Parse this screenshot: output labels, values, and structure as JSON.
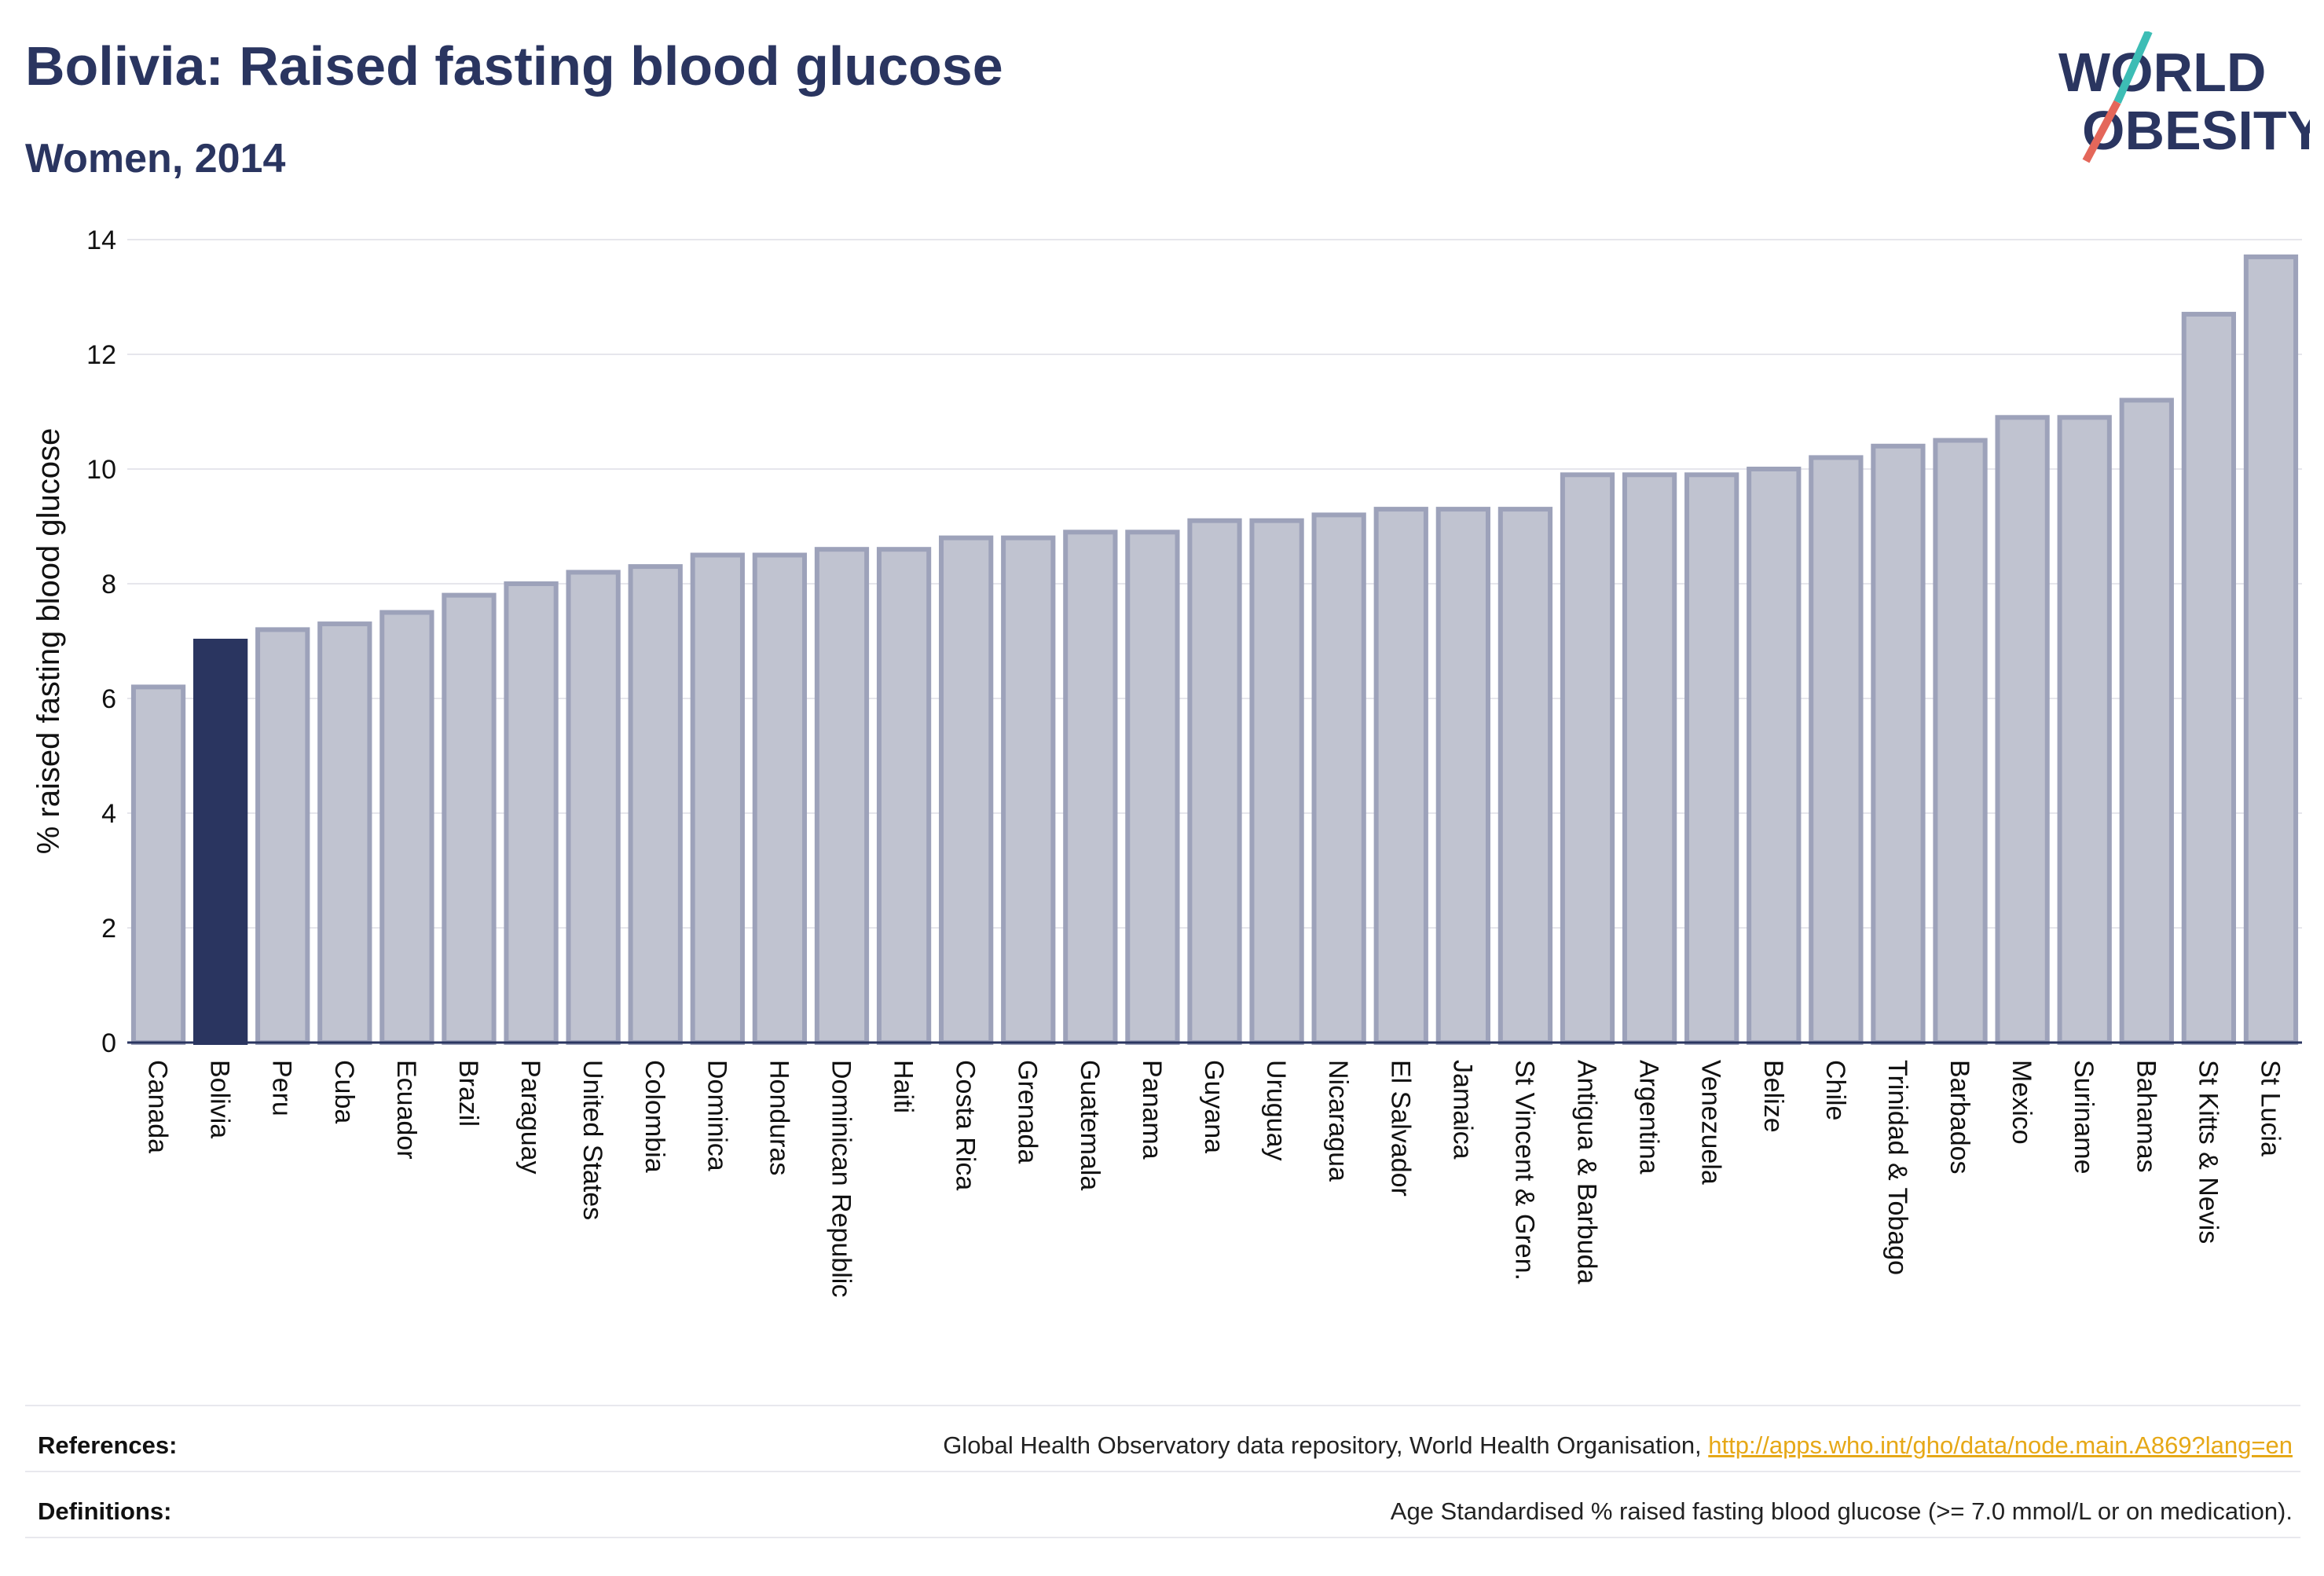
{
  "header": {
    "title": "Bolivia: Raised fasting blood glucose",
    "subtitle": "Women, 2014"
  },
  "logo": {
    "line1": "WORLD",
    "line2": "OBESITY",
    "colors": {
      "text": "#2a3560",
      "slash_top": "#3dbdb5",
      "slash_bottom": "#e4675a"
    }
  },
  "chart_data": {
    "type": "bar",
    "title": "Bolivia: Raised fasting blood glucose",
    "subtitle": "Women, 2014",
    "xlabel": "",
    "ylabel": "% raised fasting blood glucose",
    "ylim": [
      0,
      14
    ],
    "yticks": [
      0,
      2,
      4,
      6,
      8,
      10,
      12,
      14
    ],
    "grid": true,
    "highlight": "Bolivia",
    "colors": {
      "bar": "#c0c3d0",
      "bar_border": "#9da2ba",
      "highlight": "#2a3560",
      "grid": "#e6e6ec",
      "axis": "#2a3560"
    },
    "categories": [
      "Canada",
      "Bolivia",
      "Peru",
      "Cuba",
      "Ecuador",
      "Brazil",
      "Paraguay",
      "United States",
      "Colombia",
      "Dominica",
      "Honduras",
      "Dominican Republic",
      "Haiti",
      "Costa Rica",
      "Grenada",
      "Guatemala",
      "Panama",
      "Guyana",
      "Uruguay",
      "Nicaragua",
      "El Salvador",
      "Jamaica",
      "St Vincent & Gren.",
      "Antigua & Barbuda",
      "Argentina",
      "Venezuela",
      "Belize",
      "Chile",
      "Trinidad & Tobago",
      "Barbados",
      "Mexico",
      "Suriname",
      "Bahamas",
      "St Kitts & Nevis",
      "St Lucia"
    ],
    "values": [
      6.2,
      7.0,
      7.2,
      7.3,
      7.5,
      7.8,
      8.0,
      8.2,
      8.3,
      8.5,
      8.5,
      8.6,
      8.6,
      8.8,
      8.8,
      8.9,
      8.9,
      9.1,
      9.1,
      9.2,
      9.3,
      9.3,
      9.3,
      9.9,
      9.9,
      9.9,
      10.0,
      10.2,
      10.4,
      10.5,
      10.9,
      10.9,
      11.2,
      12.7,
      13.7
    ]
  },
  "footer": {
    "references_label": "References:",
    "references_text": "Global Health Observatory data repository, World Health Organisation, ",
    "references_link": "http://apps.who.int/gho/data/node.main.A869?lang=en",
    "definitions_label": "Definitions:",
    "definitions_text": "Age Standardised % raised fasting blood glucose (>= 7.0 mmol/L or on medication)."
  }
}
